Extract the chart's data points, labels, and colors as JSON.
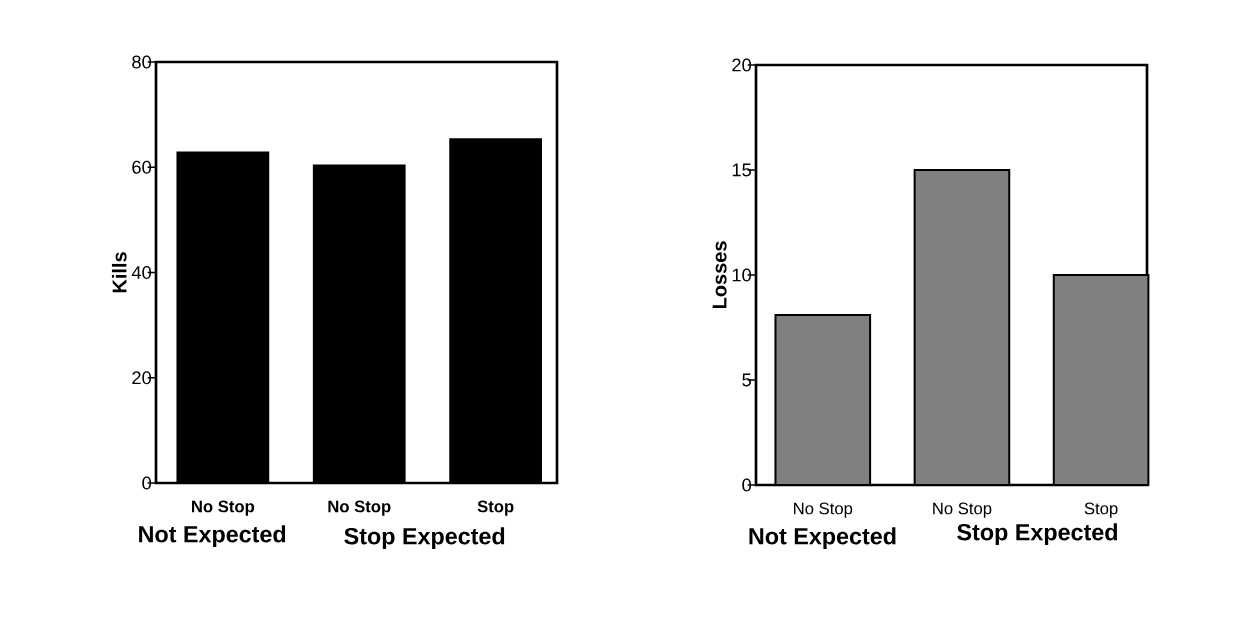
{
  "chart_data": [
    {
      "type": "bar",
      "ylabel": "Kills",
      "categories": [
        "No Stop",
        "No Stop",
        "Stop"
      ],
      "values": [
        63,
        60.5,
        65.5
      ],
      "color": "#000000",
      "ylim": [
        0,
        80
      ],
      "yticks": [
        0,
        20,
        40,
        60,
        80
      ],
      "annotations": [
        "Not Expected",
        "Stop Expected"
      ]
    },
    {
      "type": "bar",
      "ylabel": "Losses",
      "categories": [
        "No Stop",
        "No Stop",
        "Stop"
      ],
      "values": [
        8.1,
        15,
        10
      ],
      "color": "#808080",
      "ylim": [
        0,
        20
      ],
      "yticks": [
        0,
        5,
        10,
        15,
        20
      ],
      "annotations": [
        "Not Expected",
        "Stop Expected"
      ]
    }
  ]
}
